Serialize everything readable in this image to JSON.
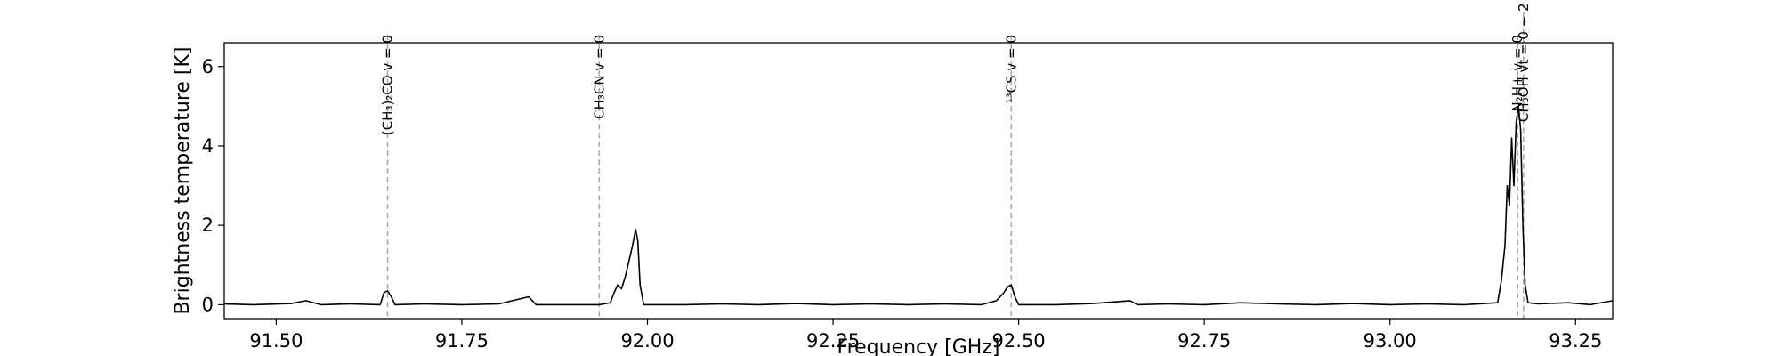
{
  "chart_data": {
    "type": "line",
    "title": "",
    "xlabel": "Frequency [GHz]",
    "ylabel": "Brightness temperature [K]",
    "xlim": [
      91.43,
      93.3
    ],
    "ylim": [
      -0.35,
      6.6
    ],
    "xticks": [
      91.5,
      91.75,
      92.0,
      92.25,
      92.5,
      92.75,
      93.0,
      93.25
    ],
    "xtick_labels": [
      "91.50",
      "91.75",
      "92.00",
      "92.25",
      "92.50",
      "92.75",
      "93.00",
      "93.25"
    ],
    "yticks": [
      0,
      2,
      4,
      6
    ],
    "ytick_labels": [
      "0",
      "2",
      "4",
      "6"
    ],
    "grid": false,
    "series": [
      {
        "color": "#000000",
        "points": [
          [
            91.43,
            0.02
          ],
          [
            91.47,
            0.0
          ],
          [
            91.52,
            0.03
          ],
          [
            91.54,
            0.1
          ],
          [
            91.56,
            0.0
          ],
          [
            91.6,
            0.02
          ],
          [
            91.64,
            0.0
          ],
          [
            91.645,
            0.3
          ],
          [
            91.65,
            0.35
          ],
          [
            91.655,
            0.2
          ],
          [
            91.66,
            0.0
          ],
          [
            91.7,
            0.02
          ],
          [
            91.75,
            0.0
          ],
          [
            91.8,
            0.02
          ],
          [
            91.84,
            0.2
          ],
          [
            91.85,
            0.0
          ],
          [
            91.9,
            0.0
          ],
          [
            91.935,
            0.0
          ],
          [
            91.95,
            0.05
          ],
          [
            91.955,
            0.3
          ],
          [
            91.96,
            0.5
          ],
          [
            91.965,
            0.4
          ],
          [
            91.97,
            0.7
          ],
          [
            91.975,
            1.1
          ],
          [
            91.98,
            1.5
          ],
          [
            91.984,
            1.9
          ],
          [
            91.987,
            1.6
          ],
          [
            91.99,
            0.5
          ],
          [
            91.995,
            0.0
          ],
          [
            92.05,
            0.0
          ],
          [
            92.1,
            0.02
          ],
          [
            92.15,
            0.0
          ],
          [
            92.2,
            0.03
          ],
          [
            92.25,
            0.0
          ],
          [
            92.3,
            0.02
          ],
          [
            92.35,
            0.0
          ],
          [
            92.4,
            0.02
          ],
          [
            92.45,
            0.0
          ],
          [
            92.47,
            0.1
          ],
          [
            92.48,
            0.3
          ],
          [
            92.485,
            0.45
          ],
          [
            92.49,
            0.5
          ],
          [
            92.495,
            0.2
          ],
          [
            92.5,
            0.0
          ],
          [
            92.55,
            0.0
          ],
          [
            92.6,
            0.03
          ],
          [
            92.65,
            0.1
          ],
          [
            92.66,
            0.0
          ],
          [
            92.7,
            0.02
          ],
          [
            92.75,
            0.0
          ],
          [
            92.8,
            0.05
          ],
          [
            92.85,
            0.02
          ],
          [
            92.9,
            0.0
          ],
          [
            92.95,
            0.03
          ],
          [
            93.0,
            0.0
          ],
          [
            93.05,
            0.02
          ],
          [
            93.1,
            0.0
          ],
          [
            93.145,
            0.05
          ],
          [
            93.15,
            0.6
          ],
          [
            93.155,
            1.5
          ],
          [
            93.158,
            3.0
          ],
          [
            93.161,
            2.5
          ],
          [
            93.164,
            4.2
          ],
          [
            93.167,
            3.0
          ],
          [
            93.17,
            4.6
          ],
          [
            93.173,
            5.0
          ],
          [
            93.176,
            4.4
          ],
          [
            93.179,
            2.0
          ],
          [
            93.182,
            0.5
          ],
          [
            93.186,
            0.05
          ],
          [
            93.2,
            0.02
          ],
          [
            93.24,
            0.05
          ],
          [
            93.27,
            0.0
          ],
          [
            93.3,
            0.1
          ]
        ]
      }
    ],
    "annotations": [
      {
        "text": "(CH₃)₂CO v = 0",
        "x": 91.65,
        "label_top": 6.8
      },
      {
        "text": "CH₃CN v = 0",
        "x": 91.935,
        "label_top": 6.8
      },
      {
        "text": "¹³CS v = 0",
        "x": 92.49,
        "label_top": 6.8
      },
      {
        "text": "N₂H+ v = 0",
        "x": 93.172,
        "label_top": 6.8
      },
      {
        "text": "CH₃OH vt = 0 − 2",
        "x": 93.18,
        "label_top": 7.6
      }
    ]
  }
}
